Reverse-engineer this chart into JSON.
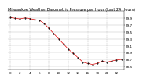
{
  "title": "Milwaukee Weather Barometric Pressure per Hour (Last 24 Hours)",
  "hours": [
    0,
    1,
    2,
    3,
    4,
    5,
    6,
    7,
    8,
    9,
    10,
    11,
    12,
    13,
    14,
    15,
    16,
    17,
    18,
    19,
    20,
    21,
    22,
    23
  ],
  "pressure": [
    29.92,
    29.9,
    29.88,
    29.91,
    29.89,
    29.86,
    29.84,
    29.75,
    29.6,
    29.45,
    29.3,
    29.15,
    29.0,
    28.88,
    28.75,
    28.62,
    28.58,
    28.55,
    28.58,
    28.65,
    28.62,
    28.65,
    28.68,
    28.7
  ],
  "ylim": [
    28.4,
    30.1
  ],
  "ytick_positions": [
    28.5,
    28.7,
    28.9,
    29.1,
    29.3,
    29.5,
    29.7,
    29.9
  ],
  "ytick_labels": [
    "28.5",
    "28.7",
    "28.9",
    "29.1",
    "29.3",
    "29.5",
    "29.7",
    "29.9"
  ],
  "xtick_positions": [
    0,
    2,
    4,
    6,
    8,
    10,
    12,
    14,
    16,
    18,
    20,
    22
  ],
  "xtick_labels": [
    "0",
    "2",
    "4",
    "6",
    "8",
    "10",
    "12",
    "14",
    "16",
    "18",
    "20",
    "22"
  ],
  "line_color": "#dd0000",
  "marker_color": "#000000",
  "bg_color": "#ffffff",
  "grid_color": "#999999",
  "vgrid_positions": [
    0,
    4,
    8,
    12,
    16,
    20,
    24
  ],
  "tick_fontsize": 3.0,
  "title_fontsize": 3.5,
  "line_width": 0.5
}
